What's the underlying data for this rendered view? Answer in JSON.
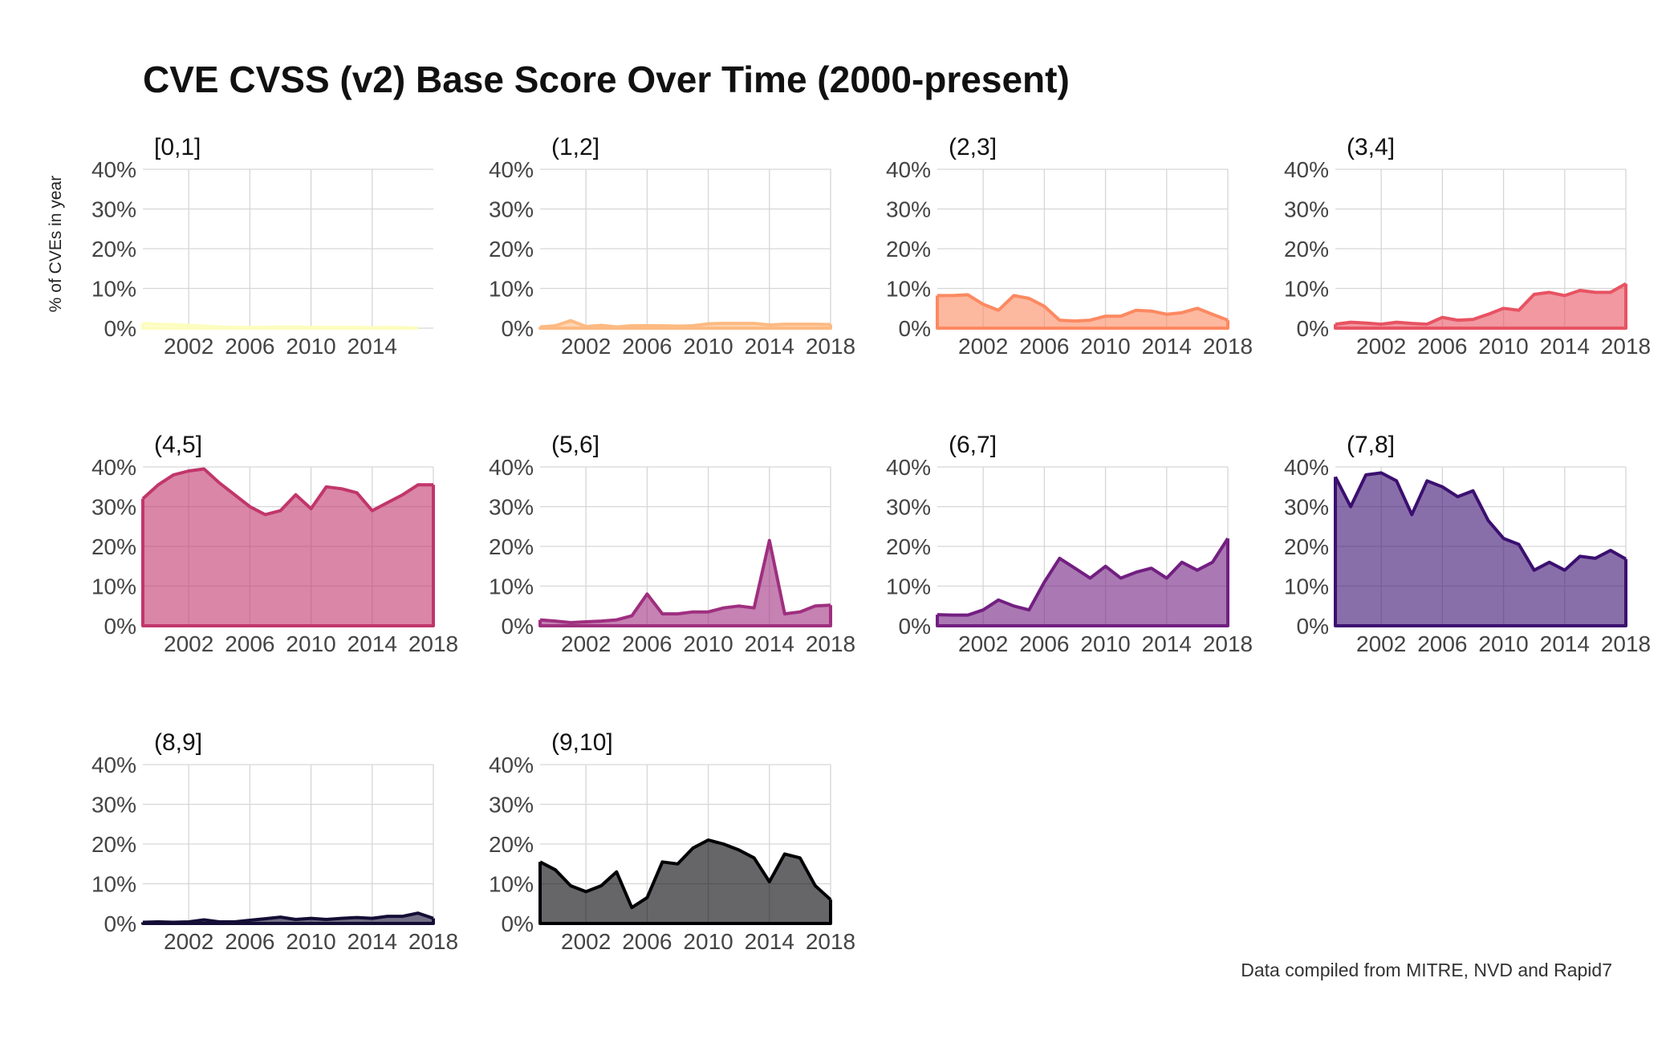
{
  "title": "CVE CVSS (v2) Base Score Over Time (2000-present)",
  "caption": "Data compiled from MITRE, NVD and Rapid7",
  "ylabel": "% of CVEs in year",
  "chart_data": {
    "type": "area",
    "title": "CVE CVSS (v2) Base Score Over Time (2000-present)",
    "xlabel": "",
    "ylabel": "% of CVEs in year",
    "ylim": [
      0,
      40
    ],
    "y_ticks": [
      "0%",
      "10%",
      "20%",
      "30%",
      "40%"
    ],
    "x_ticks_a": [
      "2002",
      "2006",
      "2010",
      "2014"
    ],
    "x_ticks_b": [
      "2002",
      "2006",
      "2010",
      "2014",
      "2018"
    ],
    "years": [
      1999,
      2000,
      2001,
      2002,
      2003,
      2004,
      2005,
      2006,
      2007,
      2008,
      2009,
      2010,
      2011,
      2012,
      2013,
      2014,
      2015,
      2016,
      2017,
      2018
    ],
    "caption": "Data compiled from MITRE, NVD and Rapid7",
    "series": [
      {
        "name": "[0,1]",
        "color": "#fcfdbf",
        "xmax": 2017,
        "values": [
          1.2,
          1.0,
          0.9,
          0.7,
          0.5,
          0.3,
          0.2,
          0.2,
          0.2,
          0.3,
          0.3,
          0.2,
          0.2,
          0.2,
          0.2,
          0.1,
          0.2,
          0.1,
          0.0
        ]
      },
      {
        "name": "(1,2]",
        "color": "#fdba82",
        "xmax": 2018,
        "values": [
          0.3,
          0.6,
          1.9,
          0.4,
          0.7,
          0.3,
          0.6,
          0.6,
          0.6,
          0.5,
          0.6,
          1.1,
          1.2,
          1.2,
          1.2,
          0.8,
          1.0,
          1.0,
          1.0,
          0.9
        ]
      },
      {
        "name": "(2,3]",
        "color": "#fc8961",
        "xmax": 2018,
        "values": [
          8.2,
          8.2,
          8.4,
          6.0,
          4.5,
          8.2,
          7.5,
          5.5,
          2.0,
          1.8,
          2.0,
          3.0,
          3.0,
          4.5,
          4.3,
          3.5,
          3.9,
          5.0,
          3.5,
          2.0
        ]
      },
      {
        "name": "(3,4]",
        "color": "#e85362",
        "xmax": 2018,
        "values": [
          1.0,
          1.5,
          1.3,
          1.0,
          1.5,
          1.2,
          1.0,
          2.7,
          2.0,
          2.2,
          3.5,
          5.0,
          4.5,
          8.5,
          9.0,
          8.2,
          9.5,
          9.0,
          9.0,
          11.2
        ]
      },
      {
        "name": "(4,5]",
        "color": "#c1366b",
        "xmax": 2018,
        "values": [
          32.0,
          35.5,
          38.0,
          39.0,
          39.5,
          36.0,
          33.0,
          30.0,
          28.0,
          29.0,
          33.0,
          29.5,
          35.0,
          34.5,
          33.5,
          29.0,
          31.0,
          33.0,
          35.5,
          35.5
        ]
      },
      {
        "name": "(5,6]",
        "color": "#9f2f7f",
        "xmax": 2018,
        "values": [
          1.5,
          1.2,
          0.8,
          1.0,
          1.2,
          1.5,
          2.5,
          8.0,
          3.0,
          3.0,
          3.5,
          3.5,
          4.5,
          5.0,
          4.5,
          21.5,
          3.0,
          3.5,
          5.0,
          5.2
        ]
      },
      {
        "name": "(6,7]",
        "color": "#721f81",
        "xmax": 2018,
        "values": [
          2.8,
          2.7,
          2.7,
          4.0,
          6.5,
          5.0,
          4.0,
          11.0,
          17.0,
          14.5,
          12.0,
          15.0,
          12.0,
          13.5,
          14.5,
          12.0,
          16.0,
          14.0,
          16.0,
          22.0
        ]
      },
      {
        "name": "(7,8]",
        "color": "#3b0f70",
        "xmax": 2018,
        "values": [
          37.5,
          30.0,
          38.0,
          38.5,
          36.5,
          28.0,
          36.5,
          35.0,
          32.5,
          34.0,
          26.5,
          22.0,
          20.5,
          14.0,
          16.0,
          14.0,
          17.5,
          17.0,
          19.0,
          16.8
        ]
      },
      {
        "name": "(8,9]",
        "color": "#140e36",
        "xmax": 2018,
        "values": [
          0.3,
          0.4,
          0.3,
          0.4,
          0.9,
          0.4,
          0.4,
          0.8,
          1.2,
          1.6,
          1.0,
          1.3,
          1.0,
          1.3,
          1.5,
          1.3,
          1.8,
          1.8,
          2.6,
          1.3
        ]
      },
      {
        "name": "(9,10]",
        "color": "#000004",
        "xmax": 2018,
        "values": [
          15.5,
          13.5,
          9.5,
          8.0,
          9.5,
          13.0,
          4.0,
          6.5,
          15.5,
          15.0,
          19.0,
          21.0,
          20.0,
          18.5,
          16.5,
          10.5,
          17.5,
          16.5,
          9.5,
          6.0
        ]
      }
    ]
  }
}
